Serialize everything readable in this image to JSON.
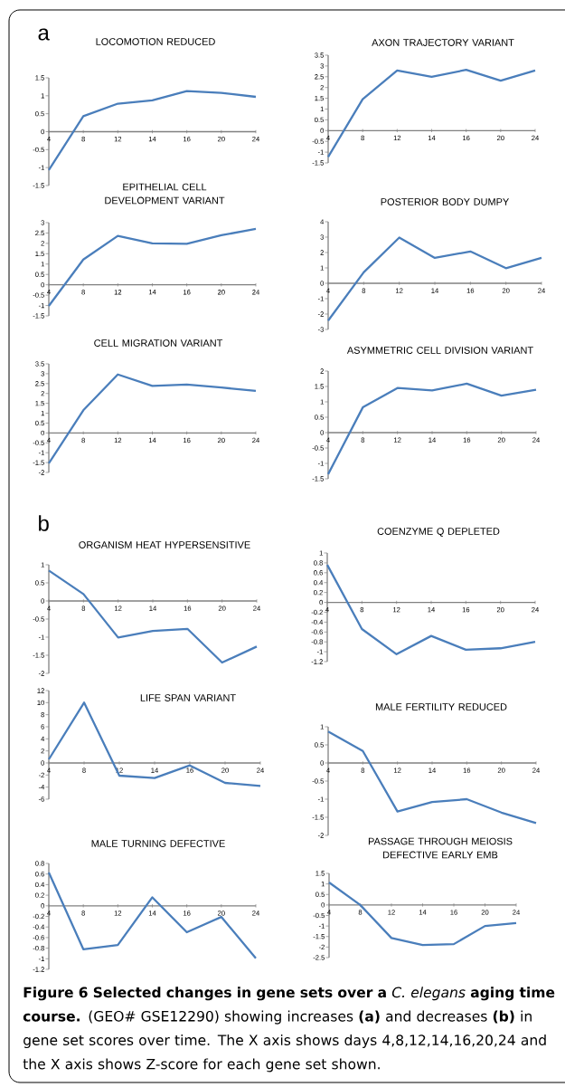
{
  "chart_data": [
    {
      "type": "line",
      "title": "LOCOMOTION REDUCED",
      "categories": [
        "4",
        "8",
        "12",
        "14",
        "16",
        "20",
        "24"
      ],
      "values": [
        -1.07,
        0.43,
        0.78,
        0.87,
        1.13,
        1.08,
        0.97
      ],
      "color": "#4a7ebb",
      "ylim": [
        -1.5,
        1.5
      ],
      "yticks": [
        -1.5,
        -1,
        -0.5,
        0,
        0.5,
        1,
        1.5
      ],
      "annotations": [
        "a",
        "**Figure 6 Selected changes in gene sets over a** *C. elegans* **aging time course.** (GEO# GSE12290) showing increases **(a)** and decreases **(b)** in gene set scores over time. The X axis shows days 4,8,12,14,16,20,24 and the X axis shows Z-score for each gene set shown."
      ]
    },
    {
      "type": "line",
      "title": "AXON TRAJECTORY VARIANT",
      "categories": [
        "4",
        "8",
        "12",
        "14",
        "16",
        "20",
        "24"
      ],
      "values": [
        -1.22,
        1.46,
        2.79,
        2.5,
        2.82,
        2.32,
        2.79
      ],
      "color": "#4a7ebb",
      "ylim": [
        -1.5,
        3.5
      ],
      "yticks": [
        -1.5,
        -1,
        -0.5,
        0,
        0.5,
        1,
        1.5,
        2,
        2.5,
        3,
        3.5
      ]
    },
    {
      "type": "line",
      "title": "EPITHELIAL CELL DEVELOPMENT VARIANT",
      "categories": [
        "4",
        "8",
        "12",
        "14",
        "16",
        "20",
        "24"
      ],
      "values": [
        -1.02,
        1.22,
        2.36,
        2.0,
        1.98,
        2.39,
        2.7
      ],
      "color": "#4a7ebb",
      "ylim": [
        -1.5,
        3
      ],
      "yticks": [
        -1.5,
        -1,
        -0.5,
        0,
        0.5,
        1,
        1.5,
        2,
        2.5,
        3
      ]
    },
    {
      "type": "line",
      "title": "POSTERIOR BODY DUMPY",
      "categories": [
        "4",
        "8",
        "12",
        "14",
        "16",
        "20",
        "24"
      ],
      "values": [
        -2.43,
        0.71,
        2.97,
        1.65,
        2.07,
        0.98,
        1.65
      ],
      "color": "#4a7ebb",
      "ylim": [
        -3,
        4
      ],
      "yticks": [
        -3,
        -2,
        -1,
        0,
        1,
        2,
        3,
        4
      ]
    },
    {
      "type": "line",
      "title": "CELL MIGRATION VARIANT",
      "categories": [
        "4",
        "8",
        "12",
        "14",
        "16",
        "20",
        "24"
      ],
      "values": [
        -1.54,
        1.15,
        2.96,
        2.38,
        2.45,
        2.3,
        2.13
      ],
      "color": "#4a7ebb",
      "ylim": [
        -2,
        3.5
      ],
      "yticks": [
        -2,
        -1.5,
        -1,
        -0.5,
        0,
        0.5,
        1,
        1.5,
        2,
        2.5,
        3,
        3.5
      ]
    },
    {
      "type": "line",
      "title": "ASYMMETRIC CELL DIVISION VARIANT",
      "categories": [
        "4",
        "8",
        "12",
        "14",
        "16",
        "20",
        "24"
      ],
      "values": [
        -1.35,
        0.82,
        1.45,
        1.37,
        1.59,
        1.2,
        1.39
      ],
      "color": "#4a7ebb",
      "ylim": [
        -1.5,
        2
      ],
      "yticks": [
        -1.5,
        -1,
        -0.5,
        0,
        0.5,
        1,
        1.5,
        2
      ]
    },
    {
      "type": "line",
      "title": "ORGANISM HEAT HYPERSENSITIVE",
      "categories": [
        "4",
        "8",
        "12",
        "14",
        "16",
        "20",
        "24"
      ],
      "values": [
        0.84,
        0.19,
        -1.01,
        -0.83,
        -0.77,
        -1.7,
        -1.26
      ],
      "color": "#4a7ebb",
      "ylim": [
        -2,
        1
      ],
      "yticks": [
        -2,
        -1.5,
        -1,
        -0.5,
        0,
        0.5,
        1
      ],
      "annotations": [
        "b"
      ]
    },
    {
      "type": "line",
      "title": "COENZYME Q DEPLETED",
      "categories": [
        "4",
        "8",
        "12",
        "14",
        "16",
        "20",
        "24"
      ],
      "values": [
        0.76,
        -0.54,
        -1.05,
        -0.68,
        -0.96,
        -0.93,
        -0.8
      ],
      "color": "#4a7ebb",
      "ylim": [
        -1.2,
        1
      ],
      "yticks": [
        -1.2,
        -1,
        -0.8,
        -0.6,
        -0.4,
        -0.2,
        0,
        0.2,
        0.4,
        0.6,
        0.8,
        1
      ]
    },
    {
      "type": "line",
      "title": "LIFE SPAN VARIANT",
      "categories": [
        "4",
        "8",
        "12",
        "14",
        "16",
        "20",
        "24"
      ],
      "values": [
        0.6,
        10,
        -2.1,
        -2.5,
        -0.4,
        -3.3,
        -3.8
      ],
      "color": "#4a7ebb",
      "ylim": [
        -6,
        12
      ],
      "yticks": [
        -6,
        -4,
        -2,
        0,
        2,
        4,
        6,
        8,
        10,
        12
      ]
    },
    {
      "type": "line",
      "title": "MALE FERTILITY REDUCED",
      "categories": [
        "4",
        "8",
        "12",
        "14",
        "16",
        "20",
        "24"
      ],
      "values": [
        0.87,
        0.33,
        -1.34,
        -1.08,
        -1.0,
        -1.37,
        -1.66
      ],
      "color": "#4a7ebb",
      "ylim": [
        -2,
        1
      ],
      "yticks": [
        -2,
        -1.5,
        -1,
        -0.5,
        0,
        0.5,
        1
      ]
    },
    {
      "type": "line",
      "title": "MALE TURNING DEFECTIVE",
      "categories": [
        "4",
        "8",
        "12",
        "14",
        "16",
        "20",
        "24"
      ],
      "values": [
        0.63,
        -0.82,
        -0.74,
        0.16,
        -0.5,
        -0.21,
        -0.99
      ],
      "color": "#4a7ebb",
      "ylim": [
        -1.2,
        0.8
      ],
      "yticks": [
        -1.2,
        -1,
        -0.8,
        -0.6,
        -0.4,
        -0.2,
        0,
        0.2,
        0.4,
        0.6,
        0.8
      ]
    },
    {
      "type": "line",
      "title": "PASSAGE THROUGH MEIOSIS DEFECTIVE EARLY EMB",
      "categories": [
        "4",
        "8",
        "12",
        "14",
        "16",
        "20",
        "24"
      ],
      "values": [
        1.07,
        0.0,
        -1.57,
        -1.9,
        -1.86,
        -1.0,
        -0.86
      ],
      "color": "#4a7ebb",
      "ylim": [
        -2.5,
        1.5
      ],
      "yticks": [
        -2.5,
        -2,
        -1.5,
        -1,
        -0.5,
        0,
        0.5,
        1,
        1.5
      ]
    }
  ]
}
